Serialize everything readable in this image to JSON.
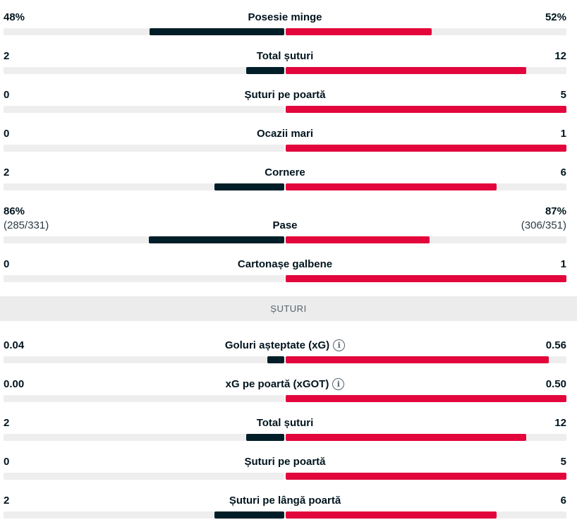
{
  "colors": {
    "home": "#001e28",
    "away": "#e2063c",
    "track": "#eeeeee"
  },
  "groups": [
    {
      "header": null,
      "rows": [
        {
          "name": "possession",
          "label": "Posesie minge",
          "left": "48%",
          "right": "52%",
          "left_share": 0.48,
          "right_share": 0.52
        },
        {
          "name": "total-shots",
          "label": "Total șuturi",
          "left": "2",
          "right": "12",
          "left_share": 0.1357,
          "right_share": 0.8568
        },
        {
          "name": "shots-on-target",
          "label": "Șuturi pe poartă",
          "left": "0",
          "right": "5",
          "left_share": 0,
          "right_share": 1
        },
        {
          "name": "big-chances",
          "label": "Ocazii mari",
          "left": "0",
          "right": "1",
          "left_share": 0,
          "right_share": 1
        },
        {
          "name": "corners",
          "label": "Cornere",
          "left": "2",
          "right": "6",
          "left_share": 0.25,
          "right_share": 0.75
        },
        {
          "name": "passes",
          "label": "Pase",
          "left": "86%",
          "right": "87%",
          "left_sub": "(285/331)",
          "right_sub": "(306/351)",
          "left_share": 0.4824,
          "right_share": 0.5126
        },
        {
          "name": "yellow-cards",
          "label": "Cartonașe galbene",
          "left": "0",
          "right": "1",
          "left_share": 0,
          "right_share": 1
        }
      ]
    },
    {
      "header": "ȘUTURI",
      "rows": [
        {
          "name": "expected-goals",
          "label": "Goluri așteptate (xG)",
          "info": true,
          "left": "0.04",
          "right": "0.56",
          "left_share": 0.0603,
          "right_share": 0.9372
        },
        {
          "name": "xgot",
          "label": "xG pe poartă (xGOT)",
          "info": true,
          "left": "0.00",
          "right": "0.50",
          "left_share": 0,
          "right_share": 1
        },
        {
          "name": "total-shots-2",
          "label": "Total șuturi",
          "left": "2",
          "right": "12",
          "left_share": 0.1357,
          "right_share": 0.8568
        },
        {
          "name": "shots-on-target-2",
          "label": "Șuturi pe poartă",
          "left": "0",
          "right": "5",
          "left_share": 0,
          "right_share": 1
        },
        {
          "name": "shots-off-target",
          "label": "Șuturi pe lângă poartă",
          "left": "2",
          "right": "6",
          "left_share": 0.25,
          "right_share": 0.75
        }
      ]
    }
  ],
  "info_glyph": "i"
}
